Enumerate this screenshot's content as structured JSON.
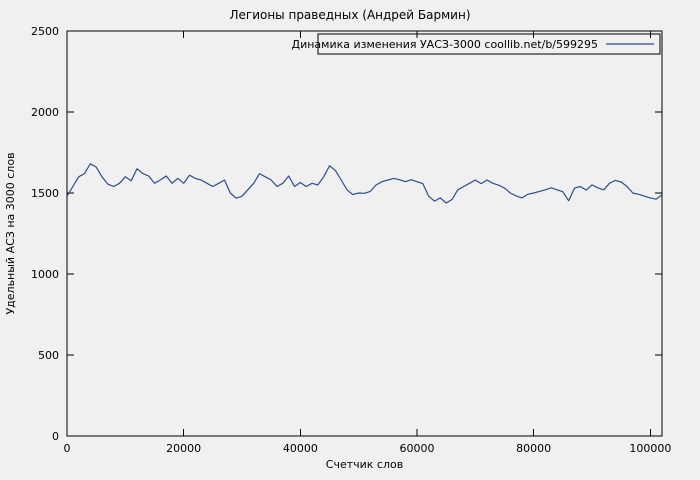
{
  "title": "Легионы праведных (Андрей Бармин)",
  "colors": {
    "background": "#f0f0f0",
    "axis": "#000000",
    "text": "#000000",
    "line": "#2b4d92"
  },
  "chart_data": {
    "type": "line",
    "title": "Легионы праведных (Андрей Бармин)",
    "xlabel": "Счетчик слов",
    "ylabel": "Удельный АСЗ на 3000 слов",
    "legend_label": "Динамика изменения УАСЗ-3000 coollib.net/b/599295",
    "legend_position": "top-right",
    "grid": false,
    "xlim": [
      0,
      102000
    ],
    "ylim": [
      0,
      2500
    ],
    "x_ticks": [
      0,
      20000,
      40000,
      60000,
      80000,
      100000
    ],
    "y_ticks": [
      0,
      500,
      1000,
      1500,
      2000,
      2500
    ],
    "series": [
      {
        "name": "Динамика изменения УАСЗ-3000 coollib.net/b/599295",
        "color": "#2b4d92",
        "x": [
          0,
          1000,
          2000,
          3000,
          4000,
          5000,
          6000,
          7000,
          8000,
          9000,
          10000,
          11000,
          12000,
          13000,
          14000,
          15000,
          16000,
          17000,
          18000,
          19000,
          20000,
          21000,
          22000,
          23000,
          24000,
          25000,
          26000,
          27000,
          28000,
          29000,
          30000,
          31000,
          32000,
          33000,
          34000,
          35000,
          36000,
          37000,
          38000,
          39000,
          40000,
          41000,
          42000,
          43000,
          44000,
          45000,
          46000,
          47000,
          48000,
          49000,
          50000,
          51000,
          52000,
          53000,
          54000,
          55000,
          56000,
          57000,
          58000,
          59000,
          60000,
          61000,
          62000,
          63000,
          64000,
          65000,
          66000,
          67000,
          68000,
          69000,
          70000,
          71000,
          72000,
          73000,
          74000,
          75000,
          76000,
          77000,
          78000,
          79000,
          80000,
          81000,
          82000,
          83000,
          84000,
          85000,
          86000,
          87000,
          88000,
          89000,
          90000,
          91000,
          92000,
          93000,
          94000,
          95000,
          96000,
          97000,
          98000,
          99000,
          100000,
          101000,
          102000
        ],
        "y": [
          1480,
          1540,
          1600,
          1620,
          1680,
          1660,
          1600,
          1555,
          1540,
          1560,
          1600,
          1575,
          1650,
          1620,
          1605,
          1560,
          1580,
          1605,
          1560,
          1590,
          1560,
          1610,
          1590,
          1580,
          1560,
          1540,
          1560,
          1580,
          1500,
          1468,
          1480,
          1520,
          1560,
          1620,
          1600,
          1580,
          1540,
          1560,
          1605,
          1540,
          1565,
          1540,
          1560,
          1550,
          1600,
          1668,
          1640,
          1580,
          1520,
          1490,
          1500,
          1498,
          1510,
          1550,
          1570,
          1580,
          1590,
          1582,
          1570,
          1582,
          1570,
          1558,
          1480,
          1450,
          1470,
          1438,
          1460,
          1520,
          1540,
          1560,
          1580,
          1558,
          1580,
          1560,
          1548,
          1530,
          1500,
          1482,
          1470,
          1492,
          1500,
          1510,
          1520,
          1532,
          1520,
          1508,
          1452,
          1530,
          1540,
          1518,
          1550,
          1532,
          1520,
          1560,
          1578,
          1568,
          1540,
          1500,
          1492,
          1480,
          1470,
          1462,
          1490
        ]
      }
    ]
  }
}
